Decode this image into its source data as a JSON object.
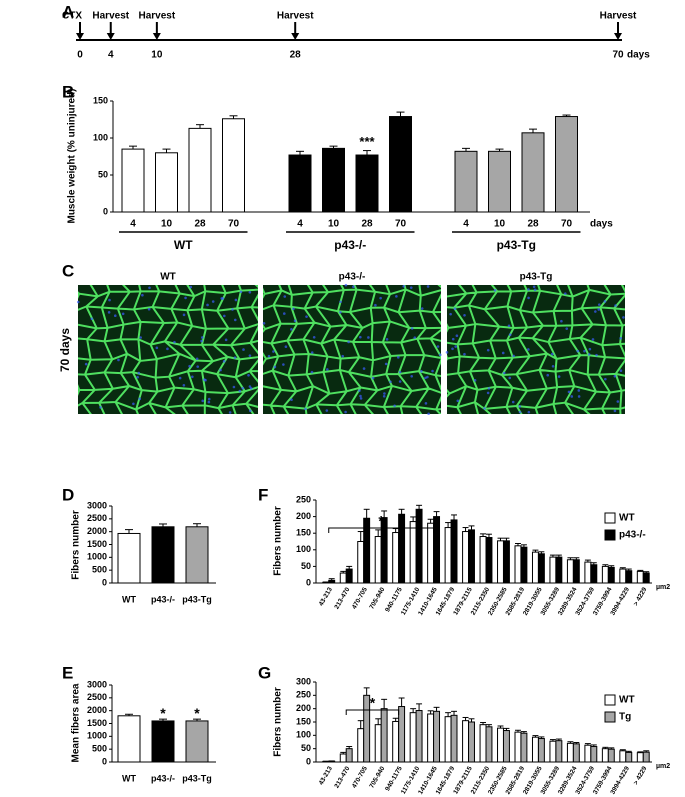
{
  "panel_labels": [
    "A",
    "B",
    "C",
    "D",
    "E",
    "F",
    "G"
  ],
  "timeline": {
    "events": [
      {
        "day": 0,
        "label": "CTX"
      },
      {
        "day": 4,
        "label": "Harvest"
      },
      {
        "day": 10,
        "label": "Harvest"
      },
      {
        "day": 28,
        "label": "Harvest"
      },
      {
        "day": 70,
        "label": "Harvest"
      }
    ],
    "ticks": [
      0,
      4,
      10,
      28,
      70
    ],
    "xlim": [
      0,
      70
    ],
    "unit": "days"
  },
  "micrographs": {
    "columns": [
      "WT",
      "p43-/-",
      "p43-Tg"
    ],
    "row_label": "70 days"
  },
  "chart_data": [
    {
      "type": "bar",
      "ylabel": "Muscle weight (% uninjured)",
      "categories": [
        "4",
        "10",
        "28",
        "70"
      ],
      "x_unit": "days",
      "series": [
        {
          "name": "WT",
          "color": "#ffffff",
          "values": [
            85,
            80,
            113,
            126
          ],
          "errors": [
            4,
            5,
            5,
            4
          ]
        },
        {
          "name": "p43-/-",
          "color": "#000000",
          "values": [
            77,
            86,
            77,
            129
          ],
          "errors": [
            5,
            3,
            6,
            6
          ]
        },
        {
          "name": "p43-Tg",
          "color": "#a6a6a6",
          "values": [
            82,
            82,
            107,
            129
          ],
          "errors": [
            4,
            3,
            5,
            2
          ]
        }
      ],
      "annotations": [
        {
          "text": "***",
          "series": "p43-/-",
          "category": "28"
        }
      ],
      "ylim": [
        0,
        150
      ],
      "yticks": [
        0,
        50,
        100,
        150
      ]
    },
    {
      "type": "bar",
      "ylabel": "Fibers number",
      "categories": [
        "WT",
        "p43-/-",
        "p43-Tg"
      ],
      "values": [
        1930,
        2190,
        2190
      ],
      "errors": [
        150,
        110,
        120
      ],
      "colors": [
        "#ffffff",
        "#000000",
        "#a6a6a6"
      ],
      "ylim": [
        0,
        3000
      ],
      "yticks": [
        0,
        500,
        1000,
        1500,
        2000,
        2500,
        3000
      ]
    },
    {
      "type": "bar",
      "ylabel": "Mean fibers area",
      "categories": [
        "WT",
        "p43-/-",
        "p43-Tg"
      ],
      "values": [
        1800,
        1600,
        1600
      ],
      "errors": [
        60,
        70,
        70
      ],
      "colors": [
        "#ffffff",
        "#000000",
        "#a6a6a6"
      ],
      "significance": [
        null,
        "*",
        "*"
      ],
      "ylim": [
        0,
        3000
      ],
      "yticks": [
        0,
        500,
        1000,
        1500,
        2000,
        2500,
        3000
      ]
    },
    {
      "type": "bar",
      "ylabel": "Fibers number",
      "x_unit": "µm2",
      "categories": [
        "43-213",
        "213-470",
        "470-705",
        "705-940",
        "940-1175",
        "1175-1410",
        "1410-1645",
        "1645-1879",
        "1879-2115",
        "2115-2350",
        "2350-2585",
        "2585-2819",
        "2819-3055",
        "3055-3289",
        "3289-3524",
        "3524-3759",
        "3759-3994",
        "3994-4229",
        "> 4229"
      ],
      "series": [
        {
          "name": "WT",
          "color": "#ffffff",
          "values": [
            2,
            30,
            125,
            140,
            152,
            185,
            180,
            167,
            155,
            140,
            127,
            112,
            93,
            78,
            70,
            63,
            50,
            42,
            35
          ],
          "errors": [
            1,
            5,
            30,
            20,
            12,
            14,
            12,
            15,
            12,
            8,
            8,
            7,
            6,
            6,
            6,
            6,
            5,
            4,
            3
          ]
        },
        {
          "name": "p43-/-",
          "color": "#000000",
          "values": [
            8,
            42,
            195,
            197,
            207,
            222,
            200,
            190,
            160,
            137,
            127,
            108,
            88,
            78,
            70,
            55,
            47,
            37,
            30
          ],
          "errors": [
            5,
            8,
            27,
            20,
            15,
            12,
            15,
            15,
            12,
            10,
            8,
            7,
            6,
            6,
            6,
            6,
            5,
            5,
            4
          ]
        }
      ],
      "legend": "upper right",
      "bracket": {
        "text": "*",
        "from": "43-213",
        "to": "1410-1645"
      },
      "ylim": [
        0,
        250
      ],
      "yticks": [
        0,
        50,
        100,
        150,
        200,
        250
      ]
    },
    {
      "type": "bar",
      "ylabel": "Fibers number",
      "x_unit": "µm2",
      "categories": [
        "43-213",
        "213-470",
        "470-705",
        "705-940",
        "940-1175",
        "1175-1410",
        "1410-1645",
        "1645-1879",
        "1879-2115",
        "2115-2350",
        "2350-2585",
        "2585-2819",
        "2819-3055",
        "3055-3289",
        "3289-3524",
        "3524-3759",
        "3759-3994",
        "3994-4229",
        "> 4229"
      ],
      "series": [
        {
          "name": "WT",
          "color": "#ffffff",
          "values": [
            2,
            30,
            125,
            140,
            152,
            185,
            180,
            170,
            155,
            140,
            127,
            112,
            93,
            78,
            70,
            63,
            50,
            42,
            35
          ],
          "errors": [
            1,
            6,
            30,
            22,
            12,
            15,
            12,
            15,
            12,
            8,
            8,
            7,
            6,
            6,
            6,
            6,
            5,
            4,
            3
          ]
        },
        {
          "name": "Tg",
          "color": "#a6a6a6",
          "values": [
            3,
            50,
            250,
            200,
            208,
            193,
            190,
            175,
            150,
            132,
            118,
            108,
            88,
            80,
            68,
            58,
            48,
            36,
            37
          ],
          "errors": [
            1,
            8,
            28,
            35,
            32,
            25,
            15,
            15,
            12,
            8,
            8,
            6,
            6,
            6,
            5,
            6,
            5,
            4,
            5
          ]
        }
      ],
      "legend": "upper right",
      "bracket": {
        "text": "*",
        "from": "213-470",
        "to": "940-1175"
      },
      "ylim": [
        0,
        300
      ],
      "yticks": [
        0,
        50,
        100,
        150,
        200,
        250,
        300
      ]
    }
  ]
}
